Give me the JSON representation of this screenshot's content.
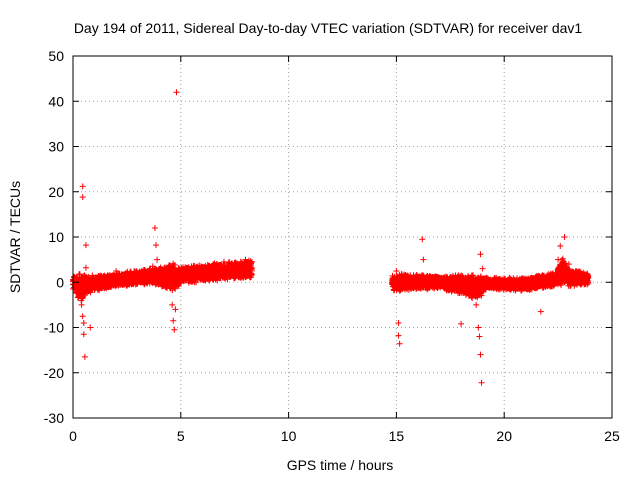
{
  "chart_data": {
    "type": "scatter",
    "title": "Day 194 of 2011, Sidereal Day-to-day VTEC variation (SDTVAR) for receiver dav1",
    "xlabel": "GPS time / hours",
    "ylabel": "SDTVAR / TECUs",
    "xlim": [
      0,
      25
    ],
    "ylim": [
      -30,
      50
    ],
    "x_ticks": [
      "0",
      "5",
      "10",
      "15",
      "20",
      "25"
    ],
    "y_ticks": [
      "-30",
      "-20",
      "-10",
      "0",
      "10",
      "20",
      "30",
      "40",
      "50"
    ],
    "grid": true,
    "marker": "+",
    "color": "#ff0000",
    "series": [
      {
        "name": "SDTVAR",
        "points": [
          [
            0.0,
            0.2
          ],
          [
            0.1,
            -1.0
          ],
          [
            0.2,
            1.0
          ],
          [
            0.3,
            -0.5
          ],
          [
            0.35,
            -3.0
          ],
          [
            0.4,
            -5.0
          ],
          [
            0.45,
            -7.5
          ],
          [
            0.5,
            -9.0
          ],
          [
            0.5,
            -11.5
          ],
          [
            0.55,
            -16.5
          ],
          [
            0.45,
            21.2
          ],
          [
            0.45,
            18.8
          ],
          [
            0.6,
            8.2
          ],
          [
            0.6,
            3.2
          ],
          [
            0.7,
            -2.0
          ],
          [
            0.8,
            -10.0
          ],
          [
            0.9,
            1.5
          ],
          [
            1.0,
            -1.0
          ],
          [
            1.2,
            0.5
          ],
          [
            1.5,
            -1.0
          ],
          [
            1.8,
            0.0
          ],
          [
            2.0,
            2.5
          ],
          [
            2.2,
            1.0
          ],
          [
            2.5,
            0.2
          ],
          [
            3.0,
            1.5
          ],
          [
            3.2,
            0.5
          ],
          [
            3.5,
            2.0
          ],
          [
            3.7,
            3.5
          ],
          [
            3.8,
            12.0
          ],
          [
            3.85,
            8.2
          ],
          [
            3.9,
            5.0
          ],
          [
            4.2,
            1.5
          ],
          [
            4.5,
            2.5
          ],
          [
            4.6,
            -5.0
          ],
          [
            4.65,
            -8.5
          ],
          [
            4.7,
            -10.5
          ],
          [
            4.75,
            -6.0
          ],
          [
            4.8,
            42.0
          ],
          [
            4.9,
            3.0
          ],
          [
            5.5,
            3.5
          ],
          [
            6.0,
            3.2
          ],
          [
            6.5,
            4.0
          ],
          [
            7.0,
            4.5
          ],
          [
            7.5,
            4.2
          ],
          [
            8.0,
            5.0
          ],
          [
            8.3,
            4.5
          ],
          [
            14.8,
            0.5
          ],
          [
            15.0,
            2.5
          ],
          [
            15.1,
            -9.0
          ],
          [
            15.1,
            -11.8
          ],
          [
            15.15,
            -13.6
          ],
          [
            15.5,
            1.5
          ],
          [
            16.0,
            0.8
          ],
          [
            16.2,
            9.5
          ],
          [
            16.25,
            5.0
          ],
          [
            17.0,
            1.0
          ],
          [
            17.5,
            0.5
          ],
          [
            18.0,
            -9.2
          ],
          [
            18.5,
            1.5
          ],
          [
            18.7,
            -5.0
          ],
          [
            18.8,
            -10.0
          ],
          [
            18.85,
            -12.0
          ],
          [
            18.9,
            -16.0
          ],
          [
            18.95,
            -22.2
          ],
          [
            18.9,
            6.2
          ],
          [
            19.0,
            3.0
          ],
          [
            19.2,
            1.0
          ],
          [
            20.0,
            0.5
          ],
          [
            21.0,
            0.0
          ],
          [
            21.7,
            -6.5
          ],
          [
            22.0,
            1.0
          ],
          [
            22.5,
            5.0
          ],
          [
            22.6,
            8.0
          ],
          [
            22.8,
            10.0
          ],
          [
            23.0,
            4.0
          ],
          [
            23.5,
            2.0
          ],
          [
            23.9,
            1.0
          ]
        ],
        "segments": [
          {
            "x_range": [
              0.0,
              8.3
            ],
            "y_band": [
              [
                0.0,
                -1.5,
                1.5
              ],
              [
                0.4,
                -5.0,
                2.0
              ],
              [
                0.7,
                -2.5,
                1.5
              ],
              [
                2.0,
                -1.0,
                2.0
              ],
              [
                3.5,
                -0.5,
                3.0
              ],
              [
                4.7,
                -2.0,
                4.5
              ],
              [
                5.0,
                -0.5,
                3.5
              ],
              [
                7.0,
                0.5,
                4.5
              ],
              [
                8.3,
                1.0,
                5.0
              ]
            ]
          },
          {
            "x_range": [
              14.8,
              23.9
            ],
            "y_band": [
              [
                14.8,
                -2.0,
                1.5
              ],
              [
                15.3,
                -2.0,
                2.0
              ],
              [
                17.0,
                -1.5,
                1.5
              ],
              [
                18.8,
                -4.0,
                2.0
              ],
              [
                19.2,
                -1.5,
                1.0
              ],
              [
                21.0,
                -2.0,
                1.0
              ],
              [
                22.4,
                -1.0,
                2.5
              ],
              [
                22.7,
                -1.0,
                6.0
              ],
              [
                23.0,
                -1.0,
                3.0
              ],
              [
                23.9,
                -0.5,
                2.0
              ]
            ]
          }
        ]
      }
    ]
  }
}
